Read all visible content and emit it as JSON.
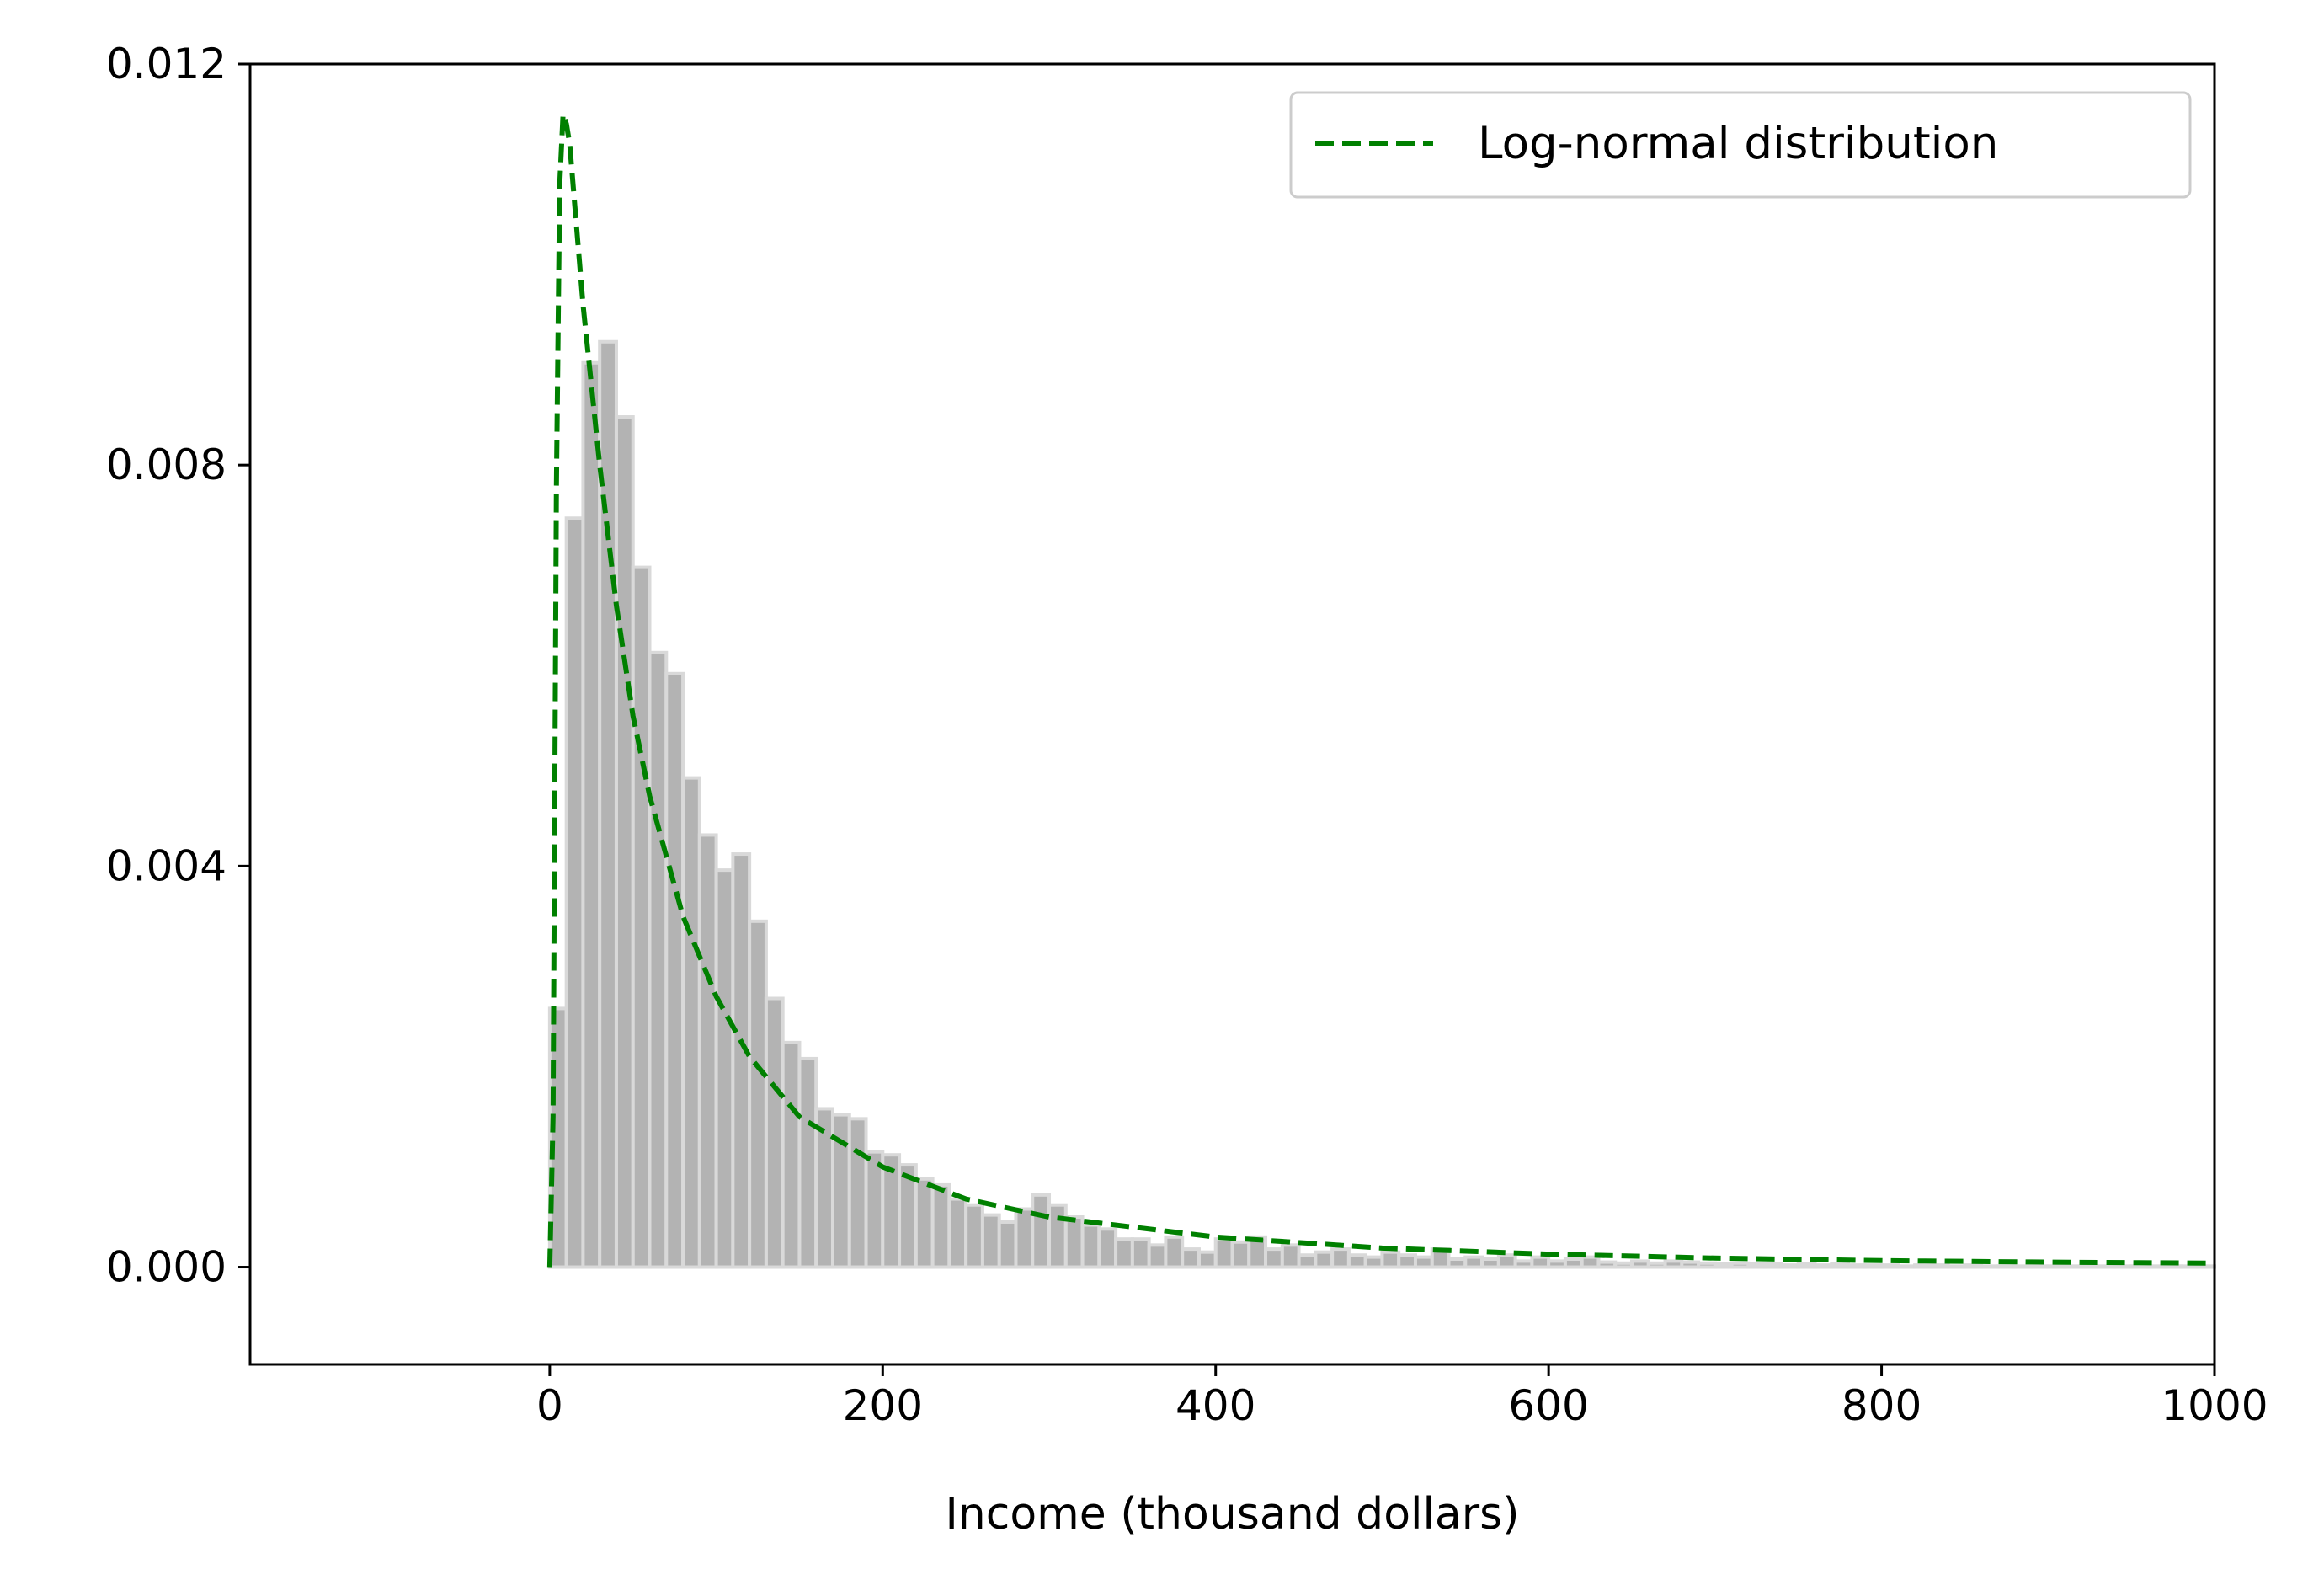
{
  "chart_data": {
    "type": "bar",
    "subtype": "histogram-with-density-curve",
    "xlabel": "Income (thousand dollars)",
    "ylabel": "",
    "xlim": [
      -180,
      1000
    ],
    "ylim": [
      -0.00097,
      0.012
    ],
    "xticks": [
      0,
      200,
      400,
      600,
      800,
      1000
    ],
    "xtick_labels": [
      "0",
      "200",
      "400",
      "600",
      "800",
      "1000"
    ],
    "yticks": [
      0.0,
      0.004,
      0.008,
      0.012
    ],
    "ytick_labels": [
      "0.000",
      "0.004",
      "0.008",
      "0.012"
    ],
    "grid": false,
    "legend": {
      "placement": "top-right",
      "entries": [
        "Log-normal distribution"
      ]
    },
    "histogram": {
      "bin_width": 10,
      "bin_start": 0,
      "densities": [
        0.00258,
        0.00747,
        0.00902,
        0.00923,
        0.00848,
        0.00698,
        0.00613,
        0.00592,
        0.00488,
        0.00431,
        0.00396,
        0.00412,
        0.00345,
        0.00268,
        0.00224,
        0.00208,
        0.00158,
        0.00152,
        0.00148,
        0.00115,
        0.00112,
        0.00102,
        0.00088,
        0.00082,
        0.00068,
        0.00062,
        0.00052,
        0.00045,
        0.00058,
        0.00072,
        0.00062,
        0.0005,
        0.00042,
        0.00038,
        0.00028,
        0.00028,
        0.00022,
        0.0003,
        0.00018,
        0.00015,
        0.00028,
        0.00025,
        0.0003,
        0.00018,
        0.00022,
        0.00012,
        0.00015,
        0.00018,
        0.00012,
        0.0001,
        0.00015,
        0.00012,
        0.0001,
        0.00018,
        8e-05,
        0.0001,
        8e-05,
        0.00012,
        6e-05,
        0.0001,
        6e-05,
        8e-05,
        0.0001,
        5e-05,
        4e-05,
        6e-05,
        4e-05,
        6e-05,
        5e-05,
        4e-05,
        3e-05,
        4e-05,
        3e-05,
        3e-05,
        2e-05,
        3e-05,
        2e-05,
        3e-05,
        2e-05,
        2e-05,
        2e-05,
        1e-05,
        2e-05,
        2e-05,
        1e-05,
        2e-05,
        1e-05,
        1e-05,
        1e-05,
        1e-05,
        1e-05,
        1e-05,
        1e-05,
        1e-05,
        1e-05,
        1e-05,
        1e-05,
        1e-05,
        1e-05,
        1e-05
      ]
    },
    "curve": {
      "name": "Log-normal distribution",
      "style": "dashed",
      "color": "#008000",
      "x": [
        0,
        2,
        4,
        6,
        8,
        10,
        12,
        15,
        20,
        25,
        30,
        40,
        50,
        60,
        80,
        100,
        120,
        150,
        200,
        250,
        300,
        400,
        500,
        600,
        700,
        800,
        900,
        1000
      ],
      "y": [
        0.0,
        0.0015,
        0.0078,
        0.0108,
        0.0115,
        0.0114,
        0.0112,
        0.0106,
        0.0096,
        0.0088,
        0.008,
        0.0066,
        0.0055,
        0.0047,
        0.0035,
        0.0027,
        0.0021,
        0.0015,
        0.001,
        0.00068,
        0.0005,
        0.0003,
        0.00019,
        0.00013,
        9e-05,
        6.5e-05,
        5e-05,
        4e-05
      ]
    },
    "colors": {
      "bar_fill": "#b3b3b3",
      "bar_edge": "#d9d9d9",
      "curve": "#008000"
    }
  }
}
